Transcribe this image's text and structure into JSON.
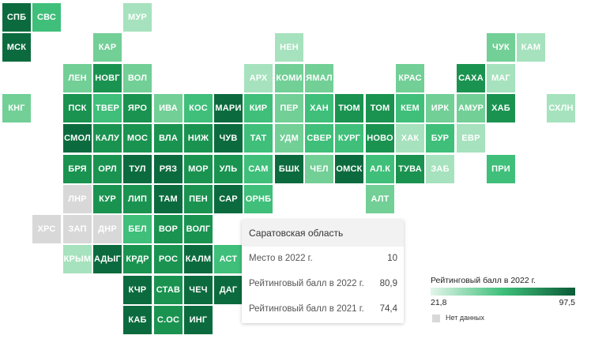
{
  "colors": {
    "level1": "#a6e2bd",
    "level2": "#72cf96",
    "level3": "#3fbf7a",
    "level4": "#1a9350",
    "level5": "#0c6b3e",
    "no_data": "#d8d8d8"
  },
  "regions": [
    {
      "code": "СПБ",
      "c": 0,
      "r": 0,
      "level": 5
    },
    {
      "code": "СВС",
      "c": 1,
      "r": 0,
      "level": 3
    },
    {
      "code": "МУР",
      "c": 4,
      "r": 0,
      "level": 1
    },
    {
      "code": "МСК",
      "c": 0,
      "r": 1,
      "level": 5
    },
    {
      "code": "КАР",
      "c": 3,
      "r": 1,
      "level": 2
    },
    {
      "code": "НЕН",
      "c": 9,
      "r": 1,
      "level": 1
    },
    {
      "code": "ЧУК",
      "c": 16,
      "r": 1,
      "level": 2
    },
    {
      "code": "КАМ",
      "c": 17,
      "r": 1,
      "level": 1
    },
    {
      "code": "ЛЕН",
      "c": 2,
      "r": 2,
      "level": 2
    },
    {
      "code": "НОВГ",
      "c": 3,
      "r": 2,
      "level": 4
    },
    {
      "code": "ВОЛ",
      "c": 4,
      "r": 2,
      "level": 2
    },
    {
      "code": "АРХ",
      "c": 8,
      "r": 2,
      "level": 1
    },
    {
      "code": "КОМИ",
      "c": 9,
      "r": 2,
      "level": 2
    },
    {
      "code": "ЯМАЛ",
      "c": 10,
      "r": 2,
      "level": 2
    },
    {
      "code": "КРАС",
      "c": 13,
      "r": 2,
      "level": 2
    },
    {
      "code": "САХА",
      "c": 15,
      "r": 2,
      "level": 4
    },
    {
      "code": "МАГ",
      "c": 16,
      "r": 2,
      "level": 1
    },
    {
      "code": "КНГ",
      "c": 0,
      "r": 3,
      "level": 2
    },
    {
      "code": "ПСК",
      "c": 2,
      "r": 3,
      "level": 4
    },
    {
      "code": "ТВЕР",
      "c": 3,
      "r": 3,
      "level": 3
    },
    {
      "code": "ЯРО",
      "c": 4,
      "r": 3,
      "level": 4
    },
    {
      "code": "ИВА",
      "c": 5,
      "r": 3,
      "level": 2
    },
    {
      "code": "КОС",
      "c": 6,
      "r": 3,
      "level": 3
    },
    {
      "code": "МАРИ",
      "c": 7,
      "r": 3,
      "level": 5
    },
    {
      "code": "КИР",
      "c": 8,
      "r": 3,
      "level": 3
    },
    {
      "code": "ПЕР",
      "c": 9,
      "r": 3,
      "level": 2
    },
    {
      "code": "ХАН",
      "c": 10,
      "r": 3,
      "level": 3
    },
    {
      "code": "ТЮМ",
      "c": 11,
      "r": 3,
      "level": 4
    },
    {
      "code": "ТОМ",
      "c": 12,
      "r": 3,
      "level": 4
    },
    {
      "code": "КЕМ",
      "c": 13,
      "r": 3,
      "level": 3
    },
    {
      "code": "ИРК",
      "c": 14,
      "r": 3,
      "level": 2
    },
    {
      "code": "АМУР",
      "c": 15,
      "r": 3,
      "level": 2
    },
    {
      "code": "ХАБ",
      "c": 16,
      "r": 3,
      "level": 4
    },
    {
      "code": "СХЛН",
      "c": 18,
      "r": 3,
      "level": 1
    },
    {
      "code": "СМОЛ",
      "c": 2,
      "r": 4,
      "level": 5
    },
    {
      "code": "КАЛУ",
      "c": 3,
      "r": 4,
      "level": 4
    },
    {
      "code": "МОС",
      "c": 4,
      "r": 4,
      "level": 4
    },
    {
      "code": "ВЛА",
      "c": 5,
      "r": 4,
      "level": 4
    },
    {
      "code": "НИЖ",
      "c": 6,
      "r": 4,
      "level": 4
    },
    {
      "code": "ЧУВ",
      "c": 7,
      "r": 4,
      "level": 5
    },
    {
      "code": "ТАТ",
      "c": 8,
      "r": 4,
      "level": 3
    },
    {
      "code": "УДМ",
      "c": 9,
      "r": 4,
      "level": 2
    },
    {
      "code": "СВЕР",
      "c": 10,
      "r": 4,
      "level": 3
    },
    {
      "code": "КУРГ",
      "c": 11,
      "r": 4,
      "level": 3
    },
    {
      "code": "НОВО",
      "c": 12,
      "r": 4,
      "level": 4
    },
    {
      "code": "ХАК",
      "c": 13,
      "r": 4,
      "level": 1
    },
    {
      "code": "БУР",
      "c": 14,
      "r": 4,
      "level": 3
    },
    {
      "code": "ЕВР",
      "c": 15,
      "r": 4,
      "level": 1
    },
    {
      "code": "БРЯ",
      "c": 2,
      "r": 5,
      "level": 4
    },
    {
      "code": "ОРЛ",
      "c": 3,
      "r": 5,
      "level": 4
    },
    {
      "code": "ТУЛ",
      "c": 4,
      "r": 5,
      "level": 5
    },
    {
      "code": "РЯЗ",
      "c": 5,
      "r": 5,
      "level": 5
    },
    {
      "code": "МОР",
      "c": 6,
      "r": 5,
      "level": 4
    },
    {
      "code": "УЛЬ",
      "c": 7,
      "r": 5,
      "level": 4
    },
    {
      "code": "САМ",
      "c": 8,
      "r": 5,
      "level": 3
    },
    {
      "code": "БШК",
      "c": 9,
      "r": 5,
      "level": 5
    },
    {
      "code": "ЧЕЛ",
      "c": 10,
      "r": 5,
      "level": 2
    },
    {
      "code": "ОМСК",
      "c": 11,
      "r": 5,
      "level": 5
    },
    {
      "code": "АЛ.К",
      "c": 12,
      "r": 5,
      "level": 3
    },
    {
      "code": "ТУВА",
      "c": 13,
      "r": 5,
      "level": 4
    },
    {
      "code": "ЗАБ",
      "c": 14,
      "r": 5,
      "level": 1
    },
    {
      "code": "ПРИ",
      "c": 16,
      "r": 5,
      "level": 3
    },
    {
      "code": "ЛНР",
      "c": 2,
      "r": 6,
      "level": 0
    },
    {
      "code": "КУР",
      "c": 3,
      "r": 6,
      "level": 4
    },
    {
      "code": "ЛИП",
      "c": 4,
      "r": 6,
      "level": 4
    },
    {
      "code": "ТАМ",
      "c": 5,
      "r": 6,
      "level": 5
    },
    {
      "code": "ПЕН",
      "c": 6,
      "r": 6,
      "level": 4
    },
    {
      "code": "САР",
      "c": 7,
      "r": 6,
      "level": 5
    },
    {
      "code": "ОРНБ",
      "c": 8,
      "r": 6,
      "level": 3
    },
    {
      "code": "АЛТ",
      "c": 12,
      "r": 6,
      "level": 2
    },
    {
      "code": "ХРС",
      "c": 1,
      "r": 7,
      "level": 0
    },
    {
      "code": "ЗАП",
      "c": 2,
      "r": 7,
      "level": 0
    },
    {
      "code": "ДНР",
      "c": 3,
      "r": 7,
      "level": 0
    },
    {
      "code": "БЕЛ",
      "c": 4,
      "r": 7,
      "level": 3
    },
    {
      "code": "ВОР",
      "c": 5,
      "r": 7,
      "level": 4
    },
    {
      "code": "ВОЛГ",
      "c": 6,
      "r": 7,
      "level": 4
    },
    {
      "code": "КРЫМ",
      "c": 2,
      "r": 8,
      "level": 1
    },
    {
      "code": "АДЫГ",
      "c": 3,
      "r": 8,
      "level": 5
    },
    {
      "code": "КРДР",
      "c": 4,
      "r": 8,
      "level": 4
    },
    {
      "code": "РОС",
      "c": 5,
      "r": 8,
      "level": 4
    },
    {
      "code": "КАЛМ",
      "c": 6,
      "r": 8,
      "level": 5
    },
    {
      "code": "АСТ",
      "c": 7,
      "r": 8,
      "level": 3
    },
    {
      "code": "КЧР",
      "c": 4,
      "r": 9,
      "level": 5
    },
    {
      "code": "СТАВ",
      "c": 5,
      "r": 9,
      "level": 4
    },
    {
      "code": "ЧЕЧ",
      "c": 6,
      "r": 9,
      "level": 5
    },
    {
      "code": "ДАГ",
      "c": 7,
      "r": 9,
      "level": 5
    },
    {
      "code": "КАБ",
      "c": 4,
      "r": 10,
      "level": 5
    },
    {
      "code": "С.ОС",
      "c": 5,
      "r": 10,
      "level": 4
    },
    {
      "code": "ИНГ",
      "c": 6,
      "r": 10,
      "level": 5
    }
  ],
  "tooltip": {
    "title": "Саратовская область",
    "rows": [
      {
        "label": "Место в 2022 г.",
        "value": "10"
      },
      {
        "label": "Рейтинговый балл в 2022 г.",
        "value": "80,9"
      },
      {
        "label": "Рейтинговый балл в 2021 г.",
        "value": "74,4"
      }
    ]
  },
  "legend": {
    "title": "Рейтинговый балл в 2022 г.",
    "min": "21,8",
    "max": "97,5",
    "no_data": "Нет данных"
  }
}
